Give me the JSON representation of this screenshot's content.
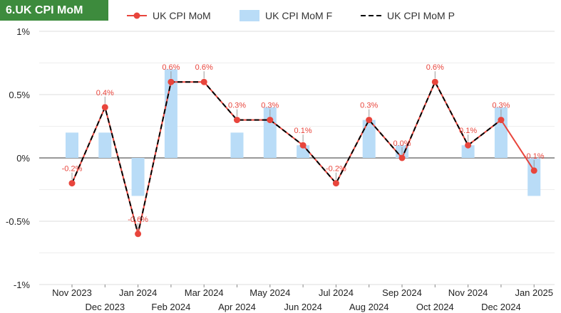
{
  "title": "6.UK CPI MoM",
  "chart_data": {
    "type": "line",
    "title": "6.UK CPI MoM",
    "categories": [
      "Nov 2023",
      "Dec 2023",
      "Jan 2024",
      "Feb 2024",
      "Mar 2024",
      "Apr 2024",
      "May 2024",
      "Jun 2024",
      "Jul 2024",
      "Aug 2024",
      "Sep 2024",
      "Oct 2024",
      "Nov 2024",
      "Dec 2024",
      "Jan 2025"
    ],
    "series": [
      {
        "name": "UK CPI MoM",
        "kind": "line",
        "color": "#e8453c",
        "values": [
          -0.2,
          0.4,
          -0.6,
          0.6,
          0.6,
          0.3,
          0.3,
          0.1,
          -0.2,
          0.3,
          0.0,
          0.6,
          0.1,
          0.3,
          -0.1
        ],
        "labels": [
          "-0.2%",
          "0.4%",
          "-0.6%",
          "0.6%",
          "0.6%",
          "0.3%",
          "0.3%",
          "0.1%",
          "-0.2%",
          "0.3%",
          "0.0%",
          "0.6%",
          "0.1%",
          "0.3%",
          "-0.1%"
        ]
      },
      {
        "name": "UK CPI MoM F",
        "kind": "bar",
        "color": "#b9dcf7",
        "values": [
          0.2,
          0.2,
          -0.3,
          0.7,
          null,
          0.2,
          0.4,
          0.1,
          null,
          0.3,
          0.1,
          null,
          0.1,
          0.4,
          -0.3
        ]
      },
      {
        "name": "UK CPI MoM P",
        "kind": "dashed-line",
        "color": "#000000",
        "values": [
          -0.2,
          0.4,
          -0.6,
          0.6,
          0.6,
          0.3,
          0.3,
          0.1,
          -0.2,
          0.3,
          0.0,
          0.6,
          0.1,
          0.3,
          null
        ]
      }
    ],
    "yticks": [
      "1%",
      "0.5%",
      "0%",
      "-0.5%",
      "-1%"
    ],
    "ylim": [
      -1,
      1
    ],
    "grid": true,
    "legend_position": "top"
  }
}
